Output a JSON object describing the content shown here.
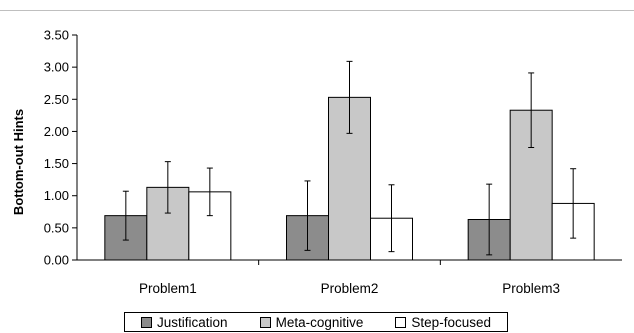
{
  "chart_data": {
    "type": "bar",
    "ylabel": "Bottom-out Hints",
    "xlabel": "",
    "ylim": [
      0,
      3.5
    ],
    "yticks": [
      "0.00",
      "0.50",
      "1.00",
      "1.50",
      "2.00",
      "2.50",
      "3.00",
      "3.50"
    ],
    "categories": [
      "Problem1",
      "Problem2",
      "Problem3"
    ],
    "series": [
      {
        "name": "Justification",
        "color": "#8c8c8c",
        "values": [
          0.69,
          0.69,
          0.63
        ],
        "errors": [
          0.38,
          0.54,
          0.55
        ]
      },
      {
        "name": "Meta-cognitive",
        "color": "#c8c8c8",
        "values": [
          1.13,
          2.53,
          2.33
        ],
        "errors": [
          0.4,
          0.56,
          0.58
        ]
      },
      {
        "name": "Step-focused",
        "color": "#ffffff",
        "values": [
          1.06,
          0.65,
          0.88
        ],
        "errors": [
          0.37,
          0.52,
          0.54
        ]
      }
    ],
    "legend_position": "bottom",
    "grid": false
  }
}
